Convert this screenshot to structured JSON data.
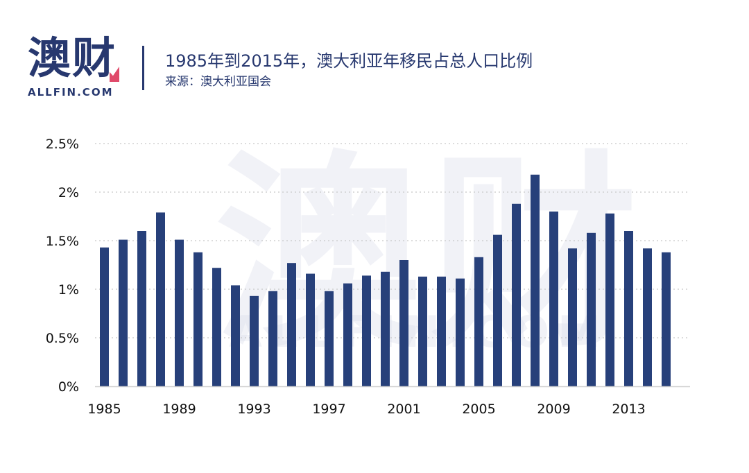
{
  "logo": {
    "cn": "澳财",
    "en": "ALLFIN.COM"
  },
  "header": {
    "title": "1985年到2015年，澳大利亚年移民占总人口比例",
    "source": "来源：澳大利亚国会"
  },
  "watermark": {
    "cn": "澳财",
    "en": "ALLFIN.COM"
  },
  "colors": {
    "bar": "#27407a",
    "brand": "#27386f",
    "accent": "#e04a6a",
    "grid": "#c8c8c8"
  },
  "chart_data": {
    "type": "bar",
    "title": "1985年到2015年，澳大利亚年移民占总人口比例",
    "xlabel": "",
    "ylabel": "",
    "categories": [
      "1985",
      "1986",
      "1987",
      "1988",
      "1989",
      "1990",
      "1991",
      "1992",
      "1993",
      "1994",
      "1995",
      "1996",
      "1997",
      "1998",
      "1999",
      "2000",
      "2001",
      "2002",
      "2003",
      "2004",
      "2005",
      "2006",
      "2007",
      "2008",
      "2009",
      "2010",
      "2011",
      "2012",
      "2013",
      "2014",
      "2015"
    ],
    "values": [
      1.43,
      1.51,
      1.6,
      1.79,
      1.51,
      1.38,
      1.22,
      1.04,
      0.93,
      0.98,
      1.27,
      1.16,
      0.98,
      1.06,
      1.14,
      1.18,
      1.3,
      1.13,
      1.13,
      1.11,
      1.33,
      1.56,
      1.88,
      2.18,
      1.8,
      1.42,
      1.58,
      1.78,
      1.6,
      1.42,
      1.38
    ],
    "x_tick_labels": [
      "1985",
      "1989",
      "1993",
      "1997",
      "2001",
      "2005",
      "2009",
      "2013"
    ],
    "y_ticks": [
      0,
      0.5,
      1,
      1.5,
      2,
      2.5
    ],
    "y_tick_labels": [
      "0%",
      "0.5%",
      "1%",
      "1.5%",
      "2%",
      "2.5%"
    ],
    "ylim": [
      0,
      2.5
    ],
    "grid": true,
    "legend": "none"
  }
}
